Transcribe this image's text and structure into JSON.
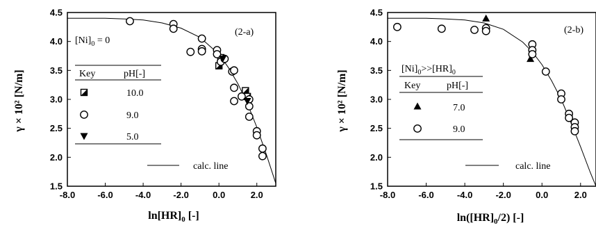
{
  "chart_data": [
    {
      "type": "scatter",
      "panel_label": "(2-a)",
      "condition_main": "[Ni]",
      "condition_sub": "0",
      "condition_rest": " = 0",
      "xlabel": "ln[HR]",
      "xlabel_sub": "0",
      "xlabel_rest": " [-]",
      "ylabel": "γ × 10² [N/m]",
      "xlim": [
        -8.0,
        3.0
      ],
      "ylim": [
        1.5,
        4.5
      ],
      "xticks": [
        "-8.0",
        "-6.0",
        "-4.0",
        "-2.0",
        "0.0",
        "2.0"
      ],
      "yticks": [
        "1.5",
        "2.0",
        "2.5",
        "3.0",
        "3.5",
        "4.0",
        "4.5"
      ],
      "legend": {
        "key_header": "Key",
        "ph_header": "pH[-]",
        "entries": [
          {
            "marker": "half-square",
            "label": "10.0"
          },
          {
            "marker": "open-circle",
            "label": "9.0"
          },
          {
            "marker": "down-triangle",
            "label": "5.0"
          }
        ]
      },
      "line_label": "calc. line",
      "series": [
        {
          "marker": "half-square",
          "points": [
            [
              0.0,
              3.58
            ],
            [
              0.1,
              3.72
            ],
            [
              1.4,
              3.15
            ],
            [
              1.5,
              3.05
            ]
          ]
        },
        {
          "marker": "open-circle",
          "points": [
            [
              -4.7,
              4.35
            ],
            [
              -2.4,
              4.3
            ],
            [
              -2.4,
              4.22
            ],
            [
              -0.9,
              4.05
            ],
            [
              -0.9,
              3.87
            ],
            [
              -0.9,
              3.83
            ],
            [
              -1.5,
              3.82
            ],
            [
              -0.1,
              3.85
            ],
            [
              -0.1,
              3.78
            ],
            [
              0.1,
              3.65
            ],
            [
              0.3,
              3.7
            ],
            [
              0.7,
              3.48
            ],
            [
              0.8,
              3.5
            ],
            [
              0.8,
              3.2
            ],
            [
              0.8,
              2.97
            ],
            [
              1.2,
              3.05
            ],
            [
              1.6,
              3.0
            ],
            [
              1.6,
              2.88
            ],
            [
              1.6,
              2.7
            ],
            [
              2.0,
              2.45
            ],
            [
              2.0,
              2.38
            ],
            [
              2.3,
              2.15
            ],
            [
              2.3,
              2.02
            ]
          ]
        },
        {
          "marker": "down-triangle",
          "points": [
            [
              0.2,
              3.7
            ],
            [
              1.5,
              2.97
            ]
          ]
        }
      ],
      "calc_line": [
        [
          -8.0,
          4.4
        ],
        [
          -6.0,
          4.4
        ],
        [
          -5.0,
          4.39
        ],
        [
          -4.0,
          4.37
        ],
        [
          -3.0,
          4.32
        ],
        [
          -2.0,
          4.23
        ],
        [
          -1.0,
          4.07
        ],
        [
          0.0,
          3.78
        ],
        [
          0.5,
          3.55
        ],
        [
          1.0,
          3.27
        ],
        [
          1.5,
          2.93
        ],
        [
          2.0,
          2.52
        ],
        [
          2.5,
          2.05
        ],
        [
          3.0,
          1.55
        ]
      ]
    },
    {
      "type": "scatter",
      "panel_label": "(2-b)",
      "condition_main": "[Ni]",
      "condition_sub": "0",
      "condition_rest": ">>[HR]",
      "condition_sub2": "0",
      "xlabel": "ln([HR]",
      "xlabel_sub": "0",
      "xlabel_rest": "/2) [-]",
      "ylabel": "γ × 10² [N/m]",
      "xlim": [
        -8.0,
        2.8
      ],
      "ylim": [
        1.5,
        4.5
      ],
      "xticks": [
        "-8.0",
        "-6.0",
        "-4.0",
        "-2.0",
        "0.0",
        "2.0"
      ],
      "yticks": [
        "1.5",
        "2.0",
        "2.5",
        "3.0",
        "3.5",
        "4.0",
        "4.5"
      ],
      "legend": {
        "key_header": "Key",
        "ph_header": "pH[-]",
        "entries": [
          {
            "marker": "up-triangle",
            "label": "7.0"
          },
          {
            "marker": "open-circle",
            "label": "9.0"
          }
        ]
      },
      "line_label": "calc. line",
      "series": [
        {
          "marker": "up-triangle",
          "points": [
            [
              -2.9,
              4.4
            ],
            [
              -0.6,
              3.7
            ]
          ]
        },
        {
          "marker": "open-circle",
          "points": [
            [
              -7.5,
              4.25
            ],
            [
              -5.2,
              4.22
            ],
            [
              -3.5,
              4.2
            ],
            [
              -2.9,
              4.23
            ],
            [
              -2.9,
              4.18
            ],
            [
              -0.5,
              3.95
            ],
            [
              -0.5,
              3.85
            ],
            [
              -0.5,
              3.78
            ],
            [
              0.2,
              3.48
            ],
            [
              1.0,
              3.1
            ],
            [
              1.0,
              3.0
            ],
            [
              1.4,
              2.75
            ],
            [
              1.4,
              2.68
            ],
            [
              1.7,
              2.6
            ],
            [
              1.7,
              2.52
            ],
            [
              1.7,
              2.45
            ]
          ]
        }
      ],
      "calc_line": [
        [
          -8.0,
          4.4
        ],
        [
          -6.0,
          4.4
        ],
        [
          -5.0,
          4.39
        ],
        [
          -4.0,
          4.37
        ],
        [
          -3.0,
          4.32
        ],
        [
          -2.0,
          4.21
        ],
        [
          -1.0,
          3.99
        ],
        [
          -0.5,
          3.82
        ],
        [
          0.0,
          3.6
        ],
        [
          0.5,
          3.32
        ],
        [
          1.0,
          3.0
        ],
        [
          1.5,
          2.6
        ],
        [
          2.0,
          2.18
        ],
        [
          2.5,
          1.74
        ],
        [
          2.8,
          1.5
        ]
      ]
    }
  ]
}
